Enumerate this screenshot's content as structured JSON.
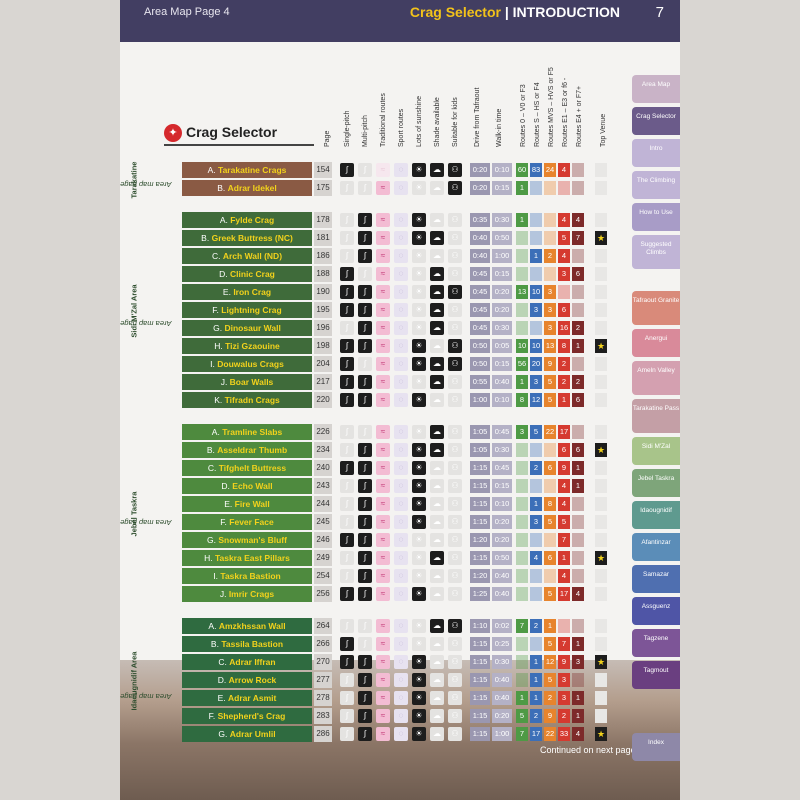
{
  "header": {
    "page_label": "Area Map Page 4",
    "section": "Crag Selector",
    "divider": "|",
    "chapter": "INTRODUCTION",
    "page_number": "7"
  },
  "title": "Crag Selector",
  "columns": [
    "Page",
    "Single-pitch",
    "Multi-pitch",
    "Traditional routes",
    "Sport routes",
    "Lots of sunshine",
    "Shade available",
    "Suitable for kids",
    "Drive from Tafraout",
    "Walk-in time",
    "Routes 0 – V0 or F3",
    "Routes S – HS or F4",
    "Routes MVS – HVS or F5",
    "Routes E1 – E3 or f6 -",
    "Routes E4 + or F7+",
    "Top Venue"
  ],
  "groups": [
    {
      "label": "Tarakatine",
      "sub": "Area map page 154",
      "color": "#8a5a44",
      "rows": [
        {
          "letter": "A.",
          "name": "Tarakatine Crags",
          "page": "154",
          "sp": 1,
          "mp": 0,
          "tr": 0,
          "sport": 0,
          "sun": 1,
          "shade": 1,
          "kids": 1,
          "drive": "0:20",
          "walk": "0:10",
          "grades": [
            "60",
            "83",
            "24",
            "4",
            ""
          ],
          "top": 0
        },
        {
          "letter": "B.",
          "name": "Adrar Idekel",
          "page": "175",
          "sp": 0,
          "mp": 0,
          "tr": 1,
          "sport": 0,
          "sun": 0,
          "shade": 0,
          "kids": 1,
          "drive": "0:20",
          "walk": "0:15",
          "grades": [
            "1",
            "",
            "",
            "",
            ""
          ],
          "top": 0
        }
      ]
    },
    {
      "label": "Sidi M'Zal Area",
      "sub": "Area map page 177",
      "color": "#3f6b3a",
      "rows": [
        {
          "letter": "A.",
          "name": "Fylde Crag",
          "page": "178",
          "sp": 0,
          "mp": 1,
          "tr": 1,
          "sport": 0,
          "sun": 1,
          "shade": 0,
          "kids": 0,
          "drive": "0:35",
          "walk": "0:30",
          "grades": [
            "1",
            "",
            "",
            "4",
            "4"
          ],
          "top": 0
        },
        {
          "letter": "B.",
          "name": "Greek Buttress (NC)",
          "page": "181",
          "sp": 0,
          "mp": 1,
          "tr": 1,
          "sport": 0,
          "sun": 1,
          "shade": 1,
          "kids": 0,
          "drive": "0:40",
          "walk": "0:50",
          "grades": [
            "",
            "",
            "",
            "5",
            "7"
          ],
          "top": 1
        },
        {
          "letter": "C.",
          "name": "Arch Wall (ND)",
          "page": "186",
          "sp": 0,
          "mp": 1,
          "tr": 1,
          "sport": 0,
          "sun": 0,
          "shade": 0,
          "kids": 0,
          "drive": "0:40",
          "walk": "1:00",
          "grades": [
            "",
            "1",
            "2",
            "4",
            ""
          ],
          "top": 0
        },
        {
          "letter": "D.",
          "name": "Clinic Crag",
          "page": "188",
          "sp": 1,
          "mp": 0,
          "tr": 1,
          "sport": 0,
          "sun": 0,
          "shade": 1,
          "kids": 0,
          "drive": "0:45",
          "walk": "0:15",
          "grades": [
            "",
            "",
            "",
            "3",
            "6"
          ],
          "top": 0
        },
        {
          "letter": "E.",
          "name": "Iron Crag",
          "page": "190",
          "sp": 1,
          "mp": 1,
          "tr": 1,
          "sport": 0,
          "sun": 0,
          "shade": 1,
          "kids": 1,
          "drive": "0:45",
          "walk": "0:20",
          "grades": [
            "13",
            "10",
            "3",
            "",
            ""
          ],
          "top": 0
        },
        {
          "letter": "F.",
          "name": "Lightning Crag",
          "page": "195",
          "sp": 1,
          "mp": 1,
          "tr": 1,
          "sport": 0,
          "sun": 0,
          "shade": 1,
          "kids": 0,
          "drive": "0:45",
          "walk": "0:20",
          "grades": [
            "",
            "3",
            "3",
            "6",
            ""
          ],
          "top": 0
        },
        {
          "letter": "G.",
          "name": "Dinosaur Wall",
          "page": "196",
          "sp": 0,
          "mp": 1,
          "tr": 1,
          "sport": 0,
          "sun": 0,
          "shade": 1,
          "kids": 0,
          "drive": "0:45",
          "walk": "0:30",
          "grades": [
            "",
            "",
            "3",
            "16",
            "2"
          ],
          "top": 0
        },
        {
          "letter": "H.",
          "name": "Tizi Gzaouine",
          "page": "198",
          "sp": 1,
          "mp": 1,
          "tr": 1,
          "sport": 0,
          "sun": 1,
          "shade": 0,
          "kids": 1,
          "drive": "0:50",
          "walk": "0:05",
          "grades": [
            "10",
            "10",
            "13",
            "8",
            "1"
          ],
          "top": 1
        },
        {
          "letter": "I.",
          "name": "Douwalus Crags",
          "page": "204",
          "sp": 1,
          "mp": 0,
          "tr": 1,
          "sport": 0,
          "sun": 1,
          "shade": 1,
          "kids": 1,
          "drive": "0:50",
          "walk": "0:15",
          "grades": [
            "56",
            "20",
            "9",
            "2",
            ""
          ],
          "top": 0
        },
        {
          "letter": "J.",
          "name": "Boar Walls",
          "page": "217",
          "sp": 1,
          "mp": 1,
          "tr": 1,
          "sport": 0,
          "sun": 0,
          "shade": 1,
          "kids": 0,
          "drive": "0:55",
          "walk": "0:40",
          "grades": [
            "1",
            "3",
            "5",
            "2",
            "2"
          ],
          "top": 0
        },
        {
          "letter": "K.",
          "name": "Tifradn Crags",
          "page": "220",
          "sp": 1,
          "mp": 1,
          "tr": 1,
          "sport": 0,
          "sun": 1,
          "shade": 0,
          "kids": 0,
          "drive": "1:00",
          "walk": "0:10",
          "grades": [
            "8",
            "12",
            "5",
            "1",
            "6"
          ],
          "top": 0
        }
      ]
    },
    {
      "label": "Jebel Taskra",
      "sub": "Area map page 224",
      "color": "#4e8a3e",
      "rows": [
        {
          "letter": "A.",
          "name": "Tramline Slabs",
          "page": "226",
          "sp": 0,
          "mp": 0,
          "tr": 1,
          "sport": 0,
          "sun": 0,
          "shade": 1,
          "kids": 0,
          "drive": "1:05",
          "walk": "0:45",
          "grades": [
            "3",
            "5",
            "22",
            "17",
            ""
          ],
          "top": 0
        },
        {
          "letter": "B.",
          "name": "Asseldrar Thumb",
          "page": "234",
          "sp": 0,
          "mp": 1,
          "tr": 1,
          "sport": 0,
          "sun": 1,
          "shade": 1,
          "kids": 0,
          "drive": "1:05",
          "walk": "0:30",
          "grades": [
            "",
            "",
            "",
            "6",
            "6"
          ],
          "top": 1
        },
        {
          "letter": "C.",
          "name": "Tifghelt Buttress",
          "page": "240",
          "sp": 1,
          "mp": 1,
          "tr": 1,
          "sport": 0,
          "sun": 1,
          "shade": 0,
          "kids": 0,
          "drive": "1:15",
          "walk": "0:45",
          "grades": [
            "",
            "2",
            "6",
            "9",
            "1"
          ],
          "top": 0
        },
        {
          "letter": "D.",
          "name": "Echo Wall",
          "page": "243",
          "sp": 0,
          "mp": 1,
          "tr": 1,
          "sport": 0,
          "sun": 1,
          "shade": 0,
          "kids": 0,
          "drive": "1:15",
          "walk": "0:15",
          "grades": [
            "",
            "",
            "",
            "4",
            "1"
          ],
          "top": 0
        },
        {
          "letter": "E.",
          "name": "Fire Wall",
          "page": "244",
          "sp": 0,
          "mp": 1,
          "tr": 1,
          "sport": 0,
          "sun": 1,
          "shade": 0,
          "kids": 0,
          "drive": "1:15",
          "walk": "0:10",
          "grades": [
            "",
            "1",
            "8",
            "4",
            ""
          ],
          "top": 0
        },
        {
          "letter": "F.",
          "name": "Fever Face",
          "page": "245",
          "sp": 0,
          "mp": 1,
          "tr": 1,
          "sport": 0,
          "sun": 1,
          "shade": 0,
          "kids": 0,
          "drive": "1:15",
          "walk": "0:20",
          "grades": [
            "",
            "3",
            "5",
            "5",
            ""
          ],
          "top": 0
        },
        {
          "letter": "G.",
          "name": "Snowman's Bluff",
          "page": "246",
          "sp": 1,
          "mp": 1,
          "tr": 1,
          "sport": 0,
          "sun": 0,
          "shade": 0,
          "kids": 0,
          "drive": "1:20",
          "walk": "0:20",
          "grades": [
            "",
            "",
            "",
            "7",
            ""
          ],
          "top": 0
        },
        {
          "letter": "H.",
          "name": "Taskra East Pillars",
          "page": "249",
          "sp": 0,
          "mp": 1,
          "tr": 1,
          "sport": 0,
          "sun": 0,
          "shade": 1,
          "kids": 0,
          "drive": "1:15",
          "walk": "0:50",
          "grades": [
            "",
            "4",
            "6",
            "1",
            ""
          ],
          "top": 1
        },
        {
          "letter": "I.",
          "name": "Taskra Bastion",
          "page": "254",
          "sp": 0,
          "mp": 1,
          "tr": 1,
          "sport": 0,
          "sun": 0,
          "shade": 0,
          "kids": 0,
          "drive": "1:20",
          "walk": "0:40",
          "grades": [
            "",
            "",
            "",
            "4",
            ""
          ],
          "top": 0
        },
        {
          "letter": "J.",
          "name": "Imrir Crags",
          "page": "256",
          "sp": 1,
          "mp": 1,
          "tr": 1,
          "sport": 0,
          "sun": 1,
          "shade": 0,
          "kids": 0,
          "drive": "1:25",
          "walk": "0:40",
          "grades": [
            "",
            "",
            "5",
            "17",
            "4"
          ],
          "top": 0
        }
      ]
    },
    {
      "label": "Idaougnidif Area",
      "sub": "Area map page 263",
      "color": "#2f6b40",
      "rows": [
        {
          "letter": "A.",
          "name": "Amzkhssan Wall",
          "page": "264",
          "sp": 0,
          "mp": 0,
          "tr": 1,
          "sport": 0,
          "sun": 0,
          "shade": 1,
          "kids": 1,
          "drive": "1:10",
          "walk": "0:02",
          "grades": [
            "7",
            "2",
            "1",
            "",
            ""
          ],
          "top": 0
        },
        {
          "letter": "B.",
          "name": "Tassila Bastion",
          "page": "266",
          "sp": 1,
          "mp": 0,
          "tr": 1,
          "sport": 0,
          "sun": 0,
          "shade": 0,
          "kids": 0,
          "drive": "1:15",
          "walk": "0:25",
          "grades": [
            "",
            "",
            "5",
            "7",
            "1"
          ],
          "top": 0
        },
        {
          "letter": "C.",
          "name": "Adrar Iffran",
          "page": "270",
          "sp": 1,
          "mp": 1,
          "tr": 1,
          "sport": 0,
          "sun": 1,
          "shade": 0,
          "kids": 0,
          "drive": "1:15",
          "walk": "0:30",
          "grades": [
            "",
            "1",
            "12",
            "9",
            "3"
          ],
          "top": 1
        },
        {
          "letter": "D.",
          "name": "Arrow Rock",
          "page": "277",
          "sp": 0,
          "mp": 1,
          "tr": 1,
          "sport": 0,
          "sun": 1,
          "shade": 0,
          "kids": 0,
          "drive": "1:15",
          "walk": "0:40",
          "grades": [
            "",
            "1",
            "5",
            "3",
            ""
          ],
          "top": 0
        },
        {
          "letter": "E.",
          "name": "Adrar Asmit",
          "page": "278",
          "sp": 0,
          "mp": 1,
          "tr": 1,
          "sport": 0,
          "sun": 1,
          "shade": 0,
          "kids": 0,
          "drive": "1:15",
          "walk": "0:40",
          "grades": [
            "1",
            "1",
            "2",
            "3",
            "1"
          ],
          "top": 0
        },
        {
          "letter": "F.",
          "name": "Shepherd's Crag",
          "page": "283",
          "sp": 0,
          "mp": 1,
          "tr": 1,
          "sport": 0,
          "sun": 1,
          "shade": 0,
          "kids": 0,
          "drive": "1:15",
          "walk": "0:20",
          "grades": [
            "5",
            "2",
            "9",
            "2",
            "1"
          ],
          "top": 0
        },
        {
          "letter": "G.",
          "name": "Adrar Umlil",
          "page": "286",
          "sp": 0,
          "mp": 1,
          "tr": 1,
          "sport": 0,
          "sun": 1,
          "shade": 0,
          "kids": 0,
          "drive": "1:15",
          "walk": "1:00",
          "grades": [
            "7",
            "17",
            "22",
            "33",
            "4"
          ],
          "top": 1
        }
      ]
    }
  ],
  "footer": "Continued on next page...",
  "sidetabs": [
    {
      "label": "Area Map",
      "color": "#c9b3c7"
    },
    {
      "label": "Crag Selector",
      "color": "#6b5b8a"
    },
    {
      "label": "Intro",
      "color": "#c0b4d6"
    },
    {
      "label": "The Climbing",
      "color": "#c0b4d6"
    },
    {
      "label": "How to Use",
      "color": "#a89cc7"
    },
    {
      "label": "Suggested Climbs",
      "color": "#c0b4d6"
    },
    {
      "label": "Tafraout Granite",
      "color": "#d98a7a"
    },
    {
      "label": "Anergui",
      "color": "#d98a9a"
    },
    {
      "label": "Ameln Valley",
      "color": "#d4a0b0"
    },
    {
      "label": "Tarakatine Pass",
      "color": "#c49fa6"
    },
    {
      "label": "Sidi M'Zal",
      "color": "#a8c48a"
    },
    {
      "label": "Jebel Taskra",
      "color": "#7ea57a"
    },
    {
      "label": "Idaougnidif",
      "color": "#5f9a8f"
    },
    {
      "label": "Afantinzar",
      "color": "#5b8db8"
    },
    {
      "label": "Samazar",
      "color": "#4f6fb0"
    },
    {
      "label": "Assguenz",
      "color": "#4f55a6"
    },
    {
      "label": "Tagzene",
      "color": "#7d5597"
    },
    {
      "label": "Tagmout",
      "color": "#6a3f80"
    },
    {
      "label": "Index",
      "color": "#8e88a8"
    }
  ]
}
